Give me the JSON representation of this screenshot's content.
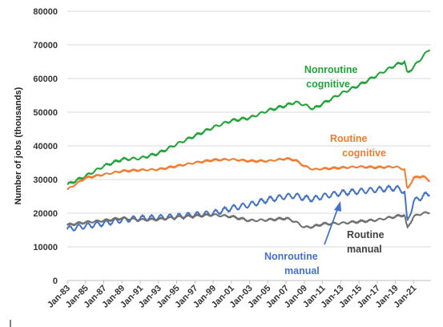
{
  "chart_data": {
    "type": "line",
    "title": "",
    "xlabel": "",
    "ylabel": "Number of jobs (thousands)",
    "ylim": [
      0,
      80000
    ],
    "yticks": [
      0,
      10000,
      20000,
      30000,
      40000,
      50000,
      60000,
      70000,
      80000
    ],
    "ytick_labels": [
      "0",
      "10000",
      "20000",
      "30000",
      "40000",
      "50000",
      "60000",
      "70000",
      "80000"
    ],
    "xlim": [
      1983.0,
      2022.9
    ],
    "xtick_labels": [
      "Jan-83",
      "Jan-85",
      "Jan-87",
      "Jan-89",
      "Jan-91",
      "Jan-93",
      "Jan-95",
      "Jan-97",
      "Jan-99",
      "Jan-01",
      "Jan-03",
      "Jan-05",
      "Jan-07",
      "Jan-09",
      "Jan-11",
      "Jan-13",
      "Jan-15",
      "Jan-17",
      "Jan-19",
      "Jan-21"
    ],
    "xticks": [
      1983,
      1985,
      1987,
      1989,
      1991,
      1993,
      1995,
      1997,
      1999,
      2001,
      2003,
      2005,
      2007,
      2009,
      2011,
      2013,
      2015,
      2017,
      2019,
      2021
    ],
    "grid": true,
    "legend": "none",
    "series": [
      {
        "name": "Nonroutine cognitive",
        "color": "#22a339",
        "x": [
          1983,
          1985,
          1987,
          1989,
          1991,
          1993,
          1995,
          1997,
          1999,
          2001,
          2003,
          2005,
          2007,
          2008,
          2009,
          2010,
          2011,
          2013,
          2015,
          2017,
          2019,
          2020,
          2020.3,
          2021,
          2022,
          2022.8
        ],
        "y": [
          28500,
          31000,
          34000,
          36000,
          36300,
          37800,
          40500,
          43000,
          45500,
          47500,
          48300,
          50500,
          52000,
          53000,
          52200,
          51000,
          52500,
          55500,
          58000,
          61000,
          64000,
          65000,
          61500,
          63500,
          66500,
          69000
        ]
      },
      {
        "name": "Routine cognitive",
        "color": "#ed7d31",
        "x": [
          1983,
          1985,
          1987,
          1989,
          1991,
          1993,
          1995,
          1997,
          1999,
          2001,
          2003,
          2005,
          2007,
          2008,
          2009,
          2010,
          2011,
          2013,
          2015,
          2017,
          2019,
          2020,
          2020.3,
          2021,
          2022,
          2022.8
        ],
        "y": [
          27000,
          30500,
          31500,
          32500,
          32800,
          33000,
          34000,
          35000,
          35800,
          36000,
          35500,
          35500,
          36200,
          35800,
          34000,
          33000,
          33200,
          33500,
          33800,
          33600,
          33800,
          33000,
          27000,
          30500,
          31000,
          29500
        ]
      },
      {
        "name": "Nonroutine manual",
        "color": "#4472c4",
        "x": [
          1983,
          1985,
          1987,
          1989,
          1991,
          1993,
          1995,
          1997,
          1999,
          2001,
          2003,
          2005,
          2007,
          2008,
          2009,
          2010,
          2011,
          2013,
          2015,
          2017,
          2019,
          2020,
          2020.3,
          2021,
          2022,
          2022.8
        ],
        "y": [
          15300,
          16200,
          17000,
          18000,
          18500,
          18700,
          19000,
          19500,
          20000,
          21500,
          22500,
          24000,
          25000,
          25200,
          24500,
          24200,
          25000,
          26000,
          26500,
          27000,
          27500,
          26500,
          17000,
          23500,
          25000,
          26000
        ]
      },
      {
        "name": "Routine manual",
        "color": "#6f6f6f",
        "x": [
          1983,
          1985,
          1987,
          1989,
          1991,
          1993,
          1995,
          1997,
          1999,
          2001,
          2003,
          2005,
          2007,
          2008,
          2009,
          2010,
          2011,
          2013,
          2015,
          2017,
          2019,
          2020,
          2020.3,
          2021,
          2022,
          2022.8
        ],
        "y": [
          16500,
          17300,
          17800,
          18500,
          18000,
          18200,
          18800,
          19200,
          19500,
          19000,
          17800,
          18000,
          18500,
          17500,
          15800,
          16000,
          16800,
          17000,
          17500,
          18000,
          19000,
          19500,
          15500,
          19000,
          20000,
          20200
        ]
      }
    ],
    "annotations": [
      {
        "series": 0,
        "lines": [
          "Nonroutine",
          "cognitive"
        ],
        "color": "#22a339"
      },
      {
        "series": 1,
        "lines": [
          "Routine",
          "cognitive"
        ],
        "color": "#ed7d31"
      },
      {
        "series": 2,
        "lines": [
          "Nonroutine",
          "manual"
        ],
        "color": "#4472c4"
      },
      {
        "series": 3,
        "lines": [
          "Routine",
          "manual"
        ],
        "color": "#404040"
      }
    ]
  }
}
